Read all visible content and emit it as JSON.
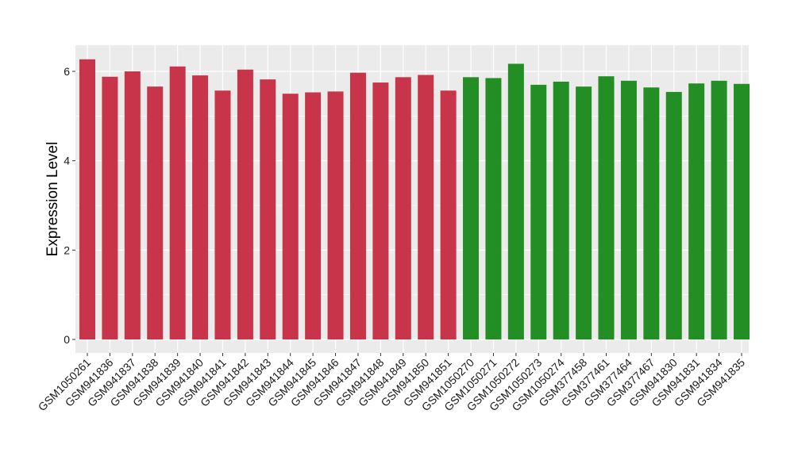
{
  "chart_data": {
    "type": "bar",
    "title": "",
    "xlabel": "",
    "ylabel": "Expression Level",
    "ylim": [
      0,
      6.5
    ],
    "yticks": [
      0,
      2,
      4,
      6
    ],
    "grid": true,
    "legend": "none",
    "categories": [
      "GSM1050261",
      "GSM941836",
      "GSM941837",
      "GSM941838",
      "GSM941839",
      "GSM941840",
      "GSM941841",
      "GSM941842",
      "GSM941843",
      "GSM941844",
      "GSM941845",
      "GSM941846",
      "GSM941847",
      "GSM941848",
      "GSM941849",
      "GSM941850",
      "GSM941851",
      "GSM1050270",
      "GSM1050271",
      "GSM1050272",
      "GSM1050273",
      "GSM1050274",
      "GSM377458",
      "GSM377461",
      "GSM377464",
      "GSM377467",
      "GSM941830",
      "GSM941831",
      "GSM941834",
      "GSM941835"
    ],
    "values": [
      6.27,
      5.88,
      6.0,
      5.66,
      6.11,
      5.91,
      5.57,
      6.04,
      5.82,
      5.5,
      5.53,
      5.55,
      5.97,
      5.75,
      5.87,
      5.92,
      5.57,
      5.87,
      5.85,
      6.17,
      5.7,
      5.77,
      5.66,
      5.89,
      5.79,
      5.64,
      5.54,
      5.73,
      5.79,
      5.72
    ],
    "colors": [
      "#c8344a",
      "#c8344a",
      "#c8344a",
      "#c8344a",
      "#c8344a",
      "#c8344a",
      "#c8344a",
      "#c8344a",
      "#c8344a",
      "#c8344a",
      "#c8344a",
      "#c8344a",
      "#c8344a",
      "#c8344a",
      "#c8344a",
      "#c8344a",
      "#c8344a",
      "#238e23",
      "#238e23",
      "#238e23",
      "#238e23",
      "#238e23",
      "#238e23",
      "#238e23",
      "#238e23",
      "#238e23",
      "#238e23",
      "#238e23",
      "#238e23",
      "#238e23"
    ],
    "panel_background": "#ebebeb",
    "gridline_color": "#ffffff"
  }
}
